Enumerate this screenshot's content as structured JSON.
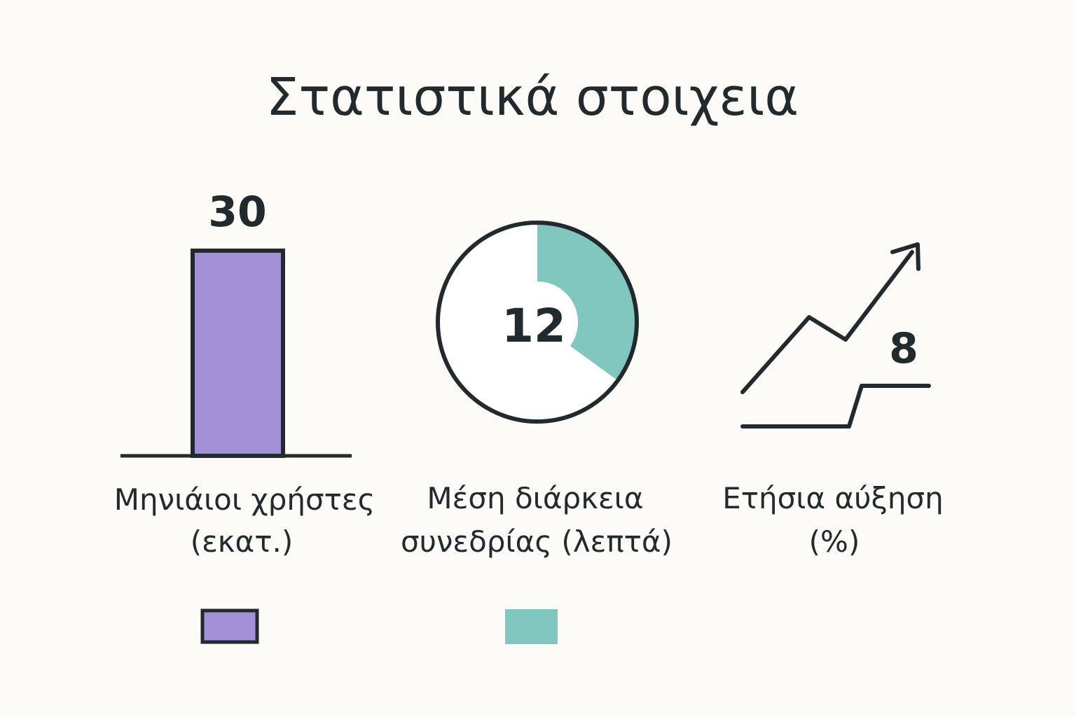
{
  "title": "Στατιστικά στοιχεια",
  "colors": {
    "background": "#fcfbf7",
    "ink": "#232a2e",
    "purple": "#a391d8",
    "teal": "#82c6c0"
  },
  "chart_data": [
    {
      "type": "bar",
      "categories": [
        "Μηνιάιοι χρήστες (εκατ.)"
      ],
      "values": [
        30
      ],
      "value_label": "30",
      "label_lines": [
        "Μηνιάιοι χρήστες",
        "(εκατ.)"
      ],
      "color": "#a391d8"
    },
    {
      "type": "pie",
      "value": 12,
      "value_label": "12",
      "filled_fraction": 0.35,
      "label_lines": [
        "Μέση διάρκεια",
        "συνεδρίας (λεπτά)"
      ],
      "color": "#82c6c0"
    },
    {
      "type": "line",
      "value": 8,
      "value_label": "8",
      "trend_icon": "trend-up-arrow-icon",
      "label_lines": [
        "Ετήσια αύξηση",
        "(%)"
      ]
    }
  ],
  "legend": [
    {
      "icon": "purple-swatch",
      "color": "#a391d8"
    },
    {
      "icon": "teal-swatch",
      "color": "#82c6c0"
    }
  ]
}
